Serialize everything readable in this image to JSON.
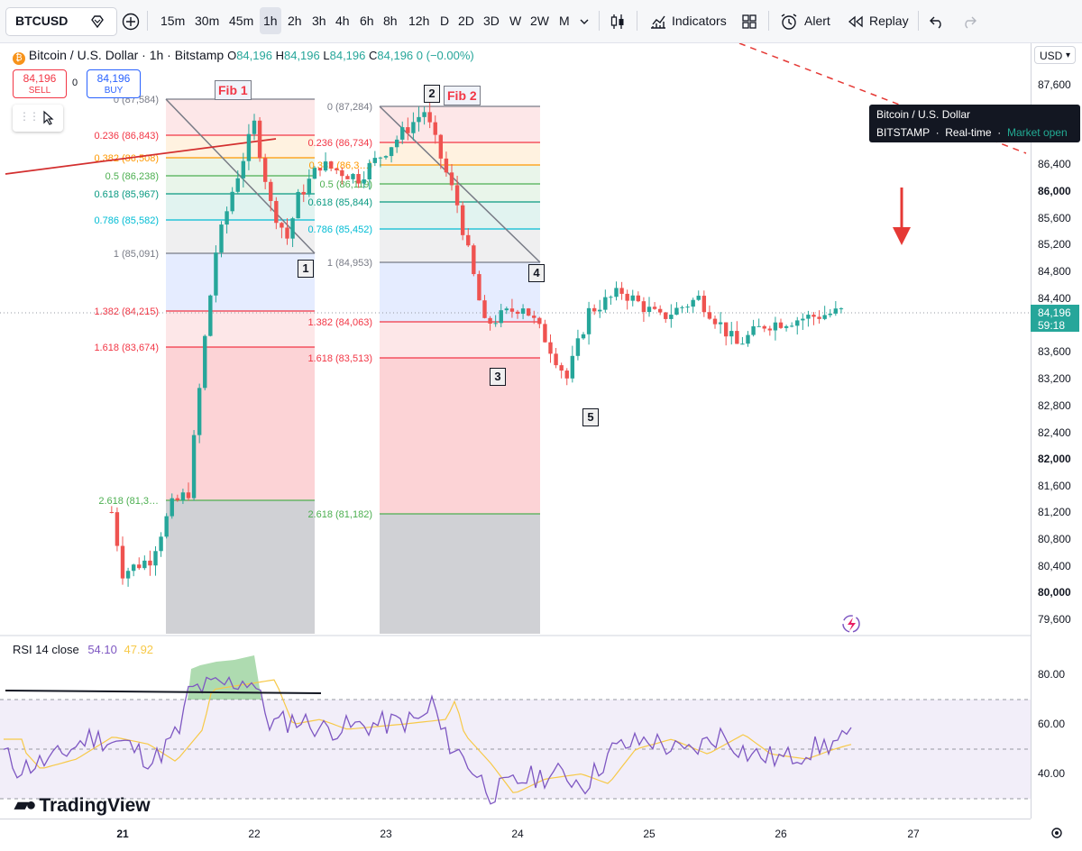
{
  "toolbar": {
    "symbol": "BTCUSD",
    "intervals": [
      "15m",
      "30m",
      "45m",
      "1h",
      "2h",
      "3h",
      "4h",
      "6h",
      "8h",
      "12h",
      "D",
      "2D",
      "3D",
      "W",
      "2W",
      "M"
    ],
    "active_interval": "1h",
    "indicators_label": "Indicators",
    "alert_label": "Alert",
    "replay_label": "Replay"
  },
  "legend": {
    "title": "Bitcoin / U.S. Dollar · 1h · Bitstamp",
    "o_label": "O",
    "o_value": "84,196",
    "h_label": "H",
    "h_value": "84,196",
    "l_label": "L",
    "l_value": "84,196",
    "c_label": "C",
    "c_value": "84,196",
    "change": "0 (−0.00%)"
  },
  "trade": {
    "sell_price": "84,196",
    "sell_label": "SELL",
    "buy_price": "84,196",
    "buy_label": "BUY",
    "spread": "0"
  },
  "price_axis": {
    "currency": "USD",
    "current_price": "84,196",
    "countdown": "59:18"
  },
  "tooltip": {
    "name": "Bitcoin / U.S. Dollar",
    "exchange": "BITSTAMP",
    "feed": "Real-time",
    "status": "Market open"
  },
  "annotations": {
    "fib1_title": "Fib 1",
    "fib2_title": "Fib 2",
    "waves": [
      "1",
      "2",
      "3",
      "4",
      "5"
    ]
  },
  "fib1_labels": [
    "0 (87,584)",
    "0.236 (86,843)",
    "0.382 (86,508)",
    "0.5 (86,238)",
    "0.618 (85,967)",
    "0.786 (85,582)",
    "1 (85,091)",
    "1.382 (84,215)",
    "1.618 (83,674)",
    "2.618 (81,3…"
  ],
  "fib2_labels": [
    "0 (87,284)",
    "0.236 (86,734)",
    "0.382 (86,3…)",
    "0.5 (86,119)",
    "0.618 (85,844)",
    "0.786 (85,452)",
    "1 (84,953)",
    "1.382 (84,063)",
    "1.618 (83,513)",
    "2.618 (81,182)"
  ],
  "rsi": {
    "label": "RSI 14 close",
    "value": "54.10",
    "ma_value": "47.92",
    "ticks": [
      "80.00",
      "60.00",
      "40.00"
    ]
  },
  "logo": "TradingView",
  "colors": {
    "up": "#26a69a",
    "down": "#ef5350",
    "rsi_line": "#7e57c2",
    "rsi_ma": "#f7c948"
  },
  "chart_data": {
    "type": "candlestick",
    "title": "Bitcoin / U.S. Dollar · 1h · Bitstamp",
    "y_ticks": [
      "87,600",
      "86,400",
      "86,000",
      "85,600",
      "85,200",
      "84,800",
      "84,400",
      "83,600",
      "83,200",
      "82,800",
      "82,400",
      "82,000",
      "81,600",
      "81,200",
      "80,800",
      "80,400",
      "80,000",
      "79,600"
    ],
    "x_ticks": [
      "21",
      "22",
      "23",
      "24",
      "25",
      "26",
      "27"
    ],
    "ylim": [
      79400,
      88000
    ],
    "series_close_waypoints": [
      {
        "x": "20 22:00",
        "y": 81200
      },
      {
        "x": "21 00:00",
        "y": 80300
      },
      {
        "x": "21 05:00",
        "y": 80500
      },
      {
        "x": "21 09:00",
        "y": 81300
      },
      {
        "x": "21 12:00",
        "y": 81500
      },
      {
        "x": "21 15:00",
        "y": 83800
      },
      {
        "x": "21 17:00",
        "y": 85100
      },
      {
        "x": "21 20:00",
        "y": 86000
      },
      {
        "x": "22 00:00",
        "y": 87000
      },
      {
        "x": "22 03:00",
        "y": 85800
      },
      {
        "x": "22 06:00",
        "y": 85300
      },
      {
        "x": "22 08:00",
        "y": 85900
      },
      {
        "x": "22 12:00",
        "y": 86400
      },
      {
        "x": "22 19:00",
        "y": 86200
      },
      {
        "x": "23 07:00",
        "y": 87200
      },
      {
        "x": "23 13:00",
        "y": 85800
      },
      {
        "x": "23 18:00",
        "y": 84000
      },
      {
        "x": "24 01:00",
        "y": 84300
      },
      {
        "x": "24 05:00",
        "y": 83800
      },
      {
        "x": "24 09:00",
        "y": 83200
      },
      {
        "x": "24 13:00",
        "y": 84200
      },
      {
        "x": "24 19:00",
        "y": 84500
      },
      {
        "x": "25 02:00",
        "y": 84100
      },
      {
        "x": "25 09:00",
        "y": 84400
      },
      {
        "x": "25 16:00",
        "y": 83700
      },
      {
        "x": "25 21:00",
        "y": 84000
      },
      {
        "x": "26 04:00",
        "y": 84100
      },
      {
        "x": "26 11:00",
        "y": 84196
      }
    ]
  }
}
